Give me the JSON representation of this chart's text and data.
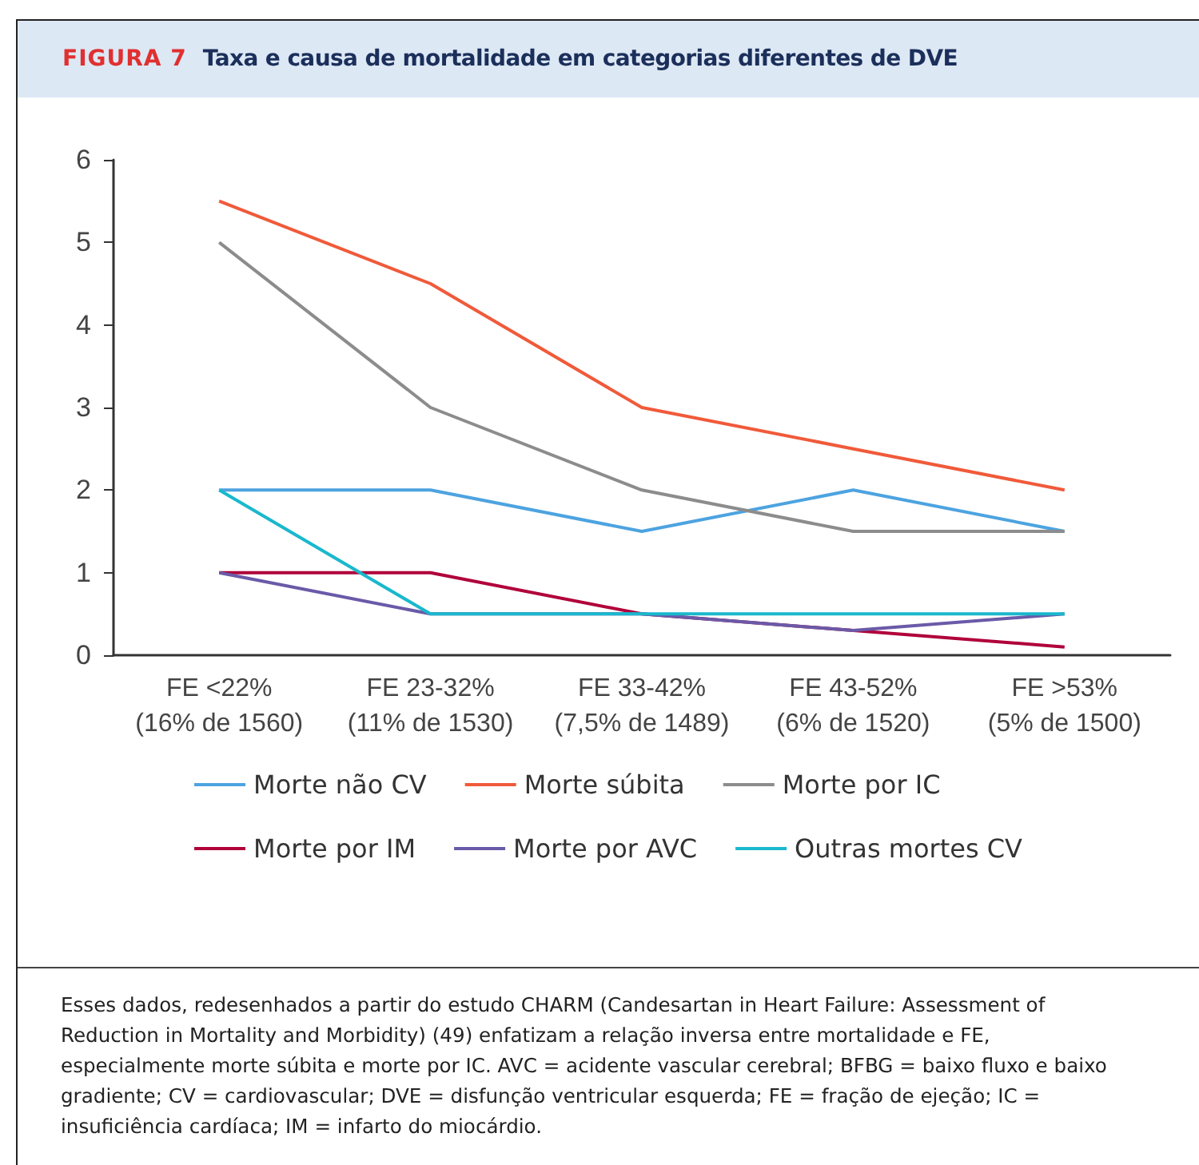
{
  "chart_data": {
    "type": "line",
    "title": "FIGURA 7",
    "subtitle": "Taxa e causa de mortalidade em categorias diferentes de DVE",
    "categories": [
      "FE <22%\n(16% de 1560)",
      "FE 23-32%\n(11% de 1530)",
      "FE 33-42%\n(7,5% de 1489)",
      "FE 43-52%\n(6% de 1520)",
      "FE >53%\n(5% de 1500)"
    ],
    "series": [
      {
        "name": "Morte não CV",
        "color": "#4da3e0",
        "values": [
          2,
          2,
          1.5,
          2,
          1.5
        ]
      },
      {
        "name": "Morte súbita",
        "color": "#f05a3a",
        "values": [
          5.5,
          4.5,
          3,
          2.5,
          2
        ]
      },
      {
        "name": "Morte por IC",
        "color": "#8c8c8c",
        "values": [
          5,
          3,
          2,
          1.5,
          1.5
        ]
      },
      {
        "name": "Morte por IM",
        "color": "#b0003a",
        "values": [
          1,
          1,
          0.5,
          0.3,
          0.1
        ]
      },
      {
        "name": "Morte por AVC",
        "color": "#6a5aa8",
        "values": [
          1,
          0.5,
          0.5,
          0.3,
          0.5
        ]
      },
      {
        "name": "Outras mortes CV",
        "color": "#1ab8cc",
        "values": [
          2,
          0.5,
          0.5,
          0.5,
          0.5
        ]
      }
    ],
    "ylim": [
      0,
      6
    ],
    "yticks": [
      0,
      1,
      2,
      3,
      4,
      5,
      6
    ],
    "grid": false,
    "legend": "bottom",
    "marker": "none",
    "line_style": "solid",
    "annotations": [
      "Esses dados, redesenhados a partir do estudo CHARM (Candesartan in Heart Failure: Assessment of Reduction in Mortality and Morbidity) (49) enfatizam a relação inversa entre mortalidade e FE, especialmente morte súbita e morte por IC. AVC = acidente vascular cerebral; BFBG = baixo fluxo e baixo gradiente; CV = cardiovascular; DVE = disfunção ventricular esquerda; FE = fração de ejeção; IC = insuficiência cardíaca; IM = infarto do miocárdio."
    ]
  }
}
